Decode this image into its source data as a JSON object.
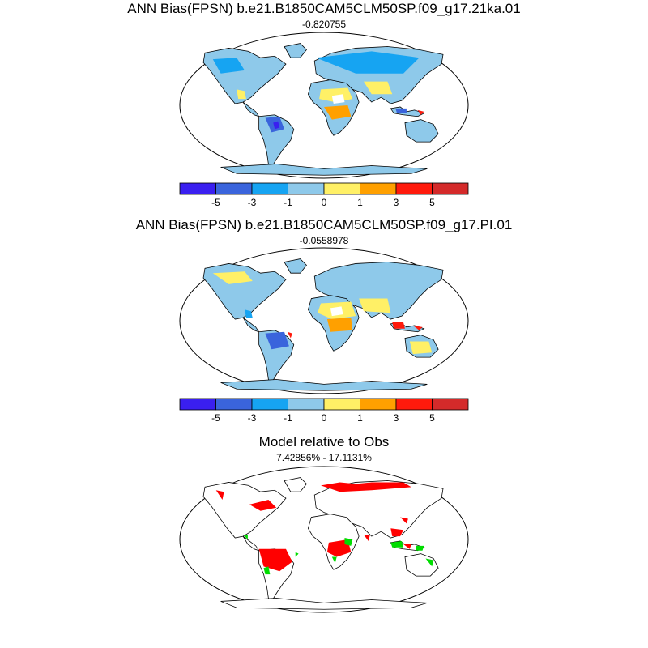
{
  "panels": [
    {
      "title": "ANN Bias(FPSN) b.e21.B1850CAM5CLM50SP.f09_g17.21ka.01",
      "subtitle": "-0.820755",
      "dominant_color": "#8ec9ea"
    },
    {
      "title": "ANN Bias(FPSN) b.e21.B1850CAM5CLM50SP.f09_g17.PI.01",
      "subtitle": "-0.0558978",
      "dominant_color": "#8ec9ea"
    },
    {
      "title": "Model relative to Obs",
      "subtitle": "7.42856% - 17.1131%",
      "colors": [
        "#ff0000",
        "#00dd00"
      ]
    }
  ],
  "colorbar": {
    "colors": [
      "#3a1ff0",
      "#3a64dc",
      "#16a4f2",
      "#8ec9ea",
      "#fff066",
      "#ffa000",
      "#ff1a0c",
      "#d42a2a"
    ],
    "labels": [
      "-5",
      "-3",
      "-1",
      "0",
      "1",
      "3",
      "5"
    ]
  }
}
